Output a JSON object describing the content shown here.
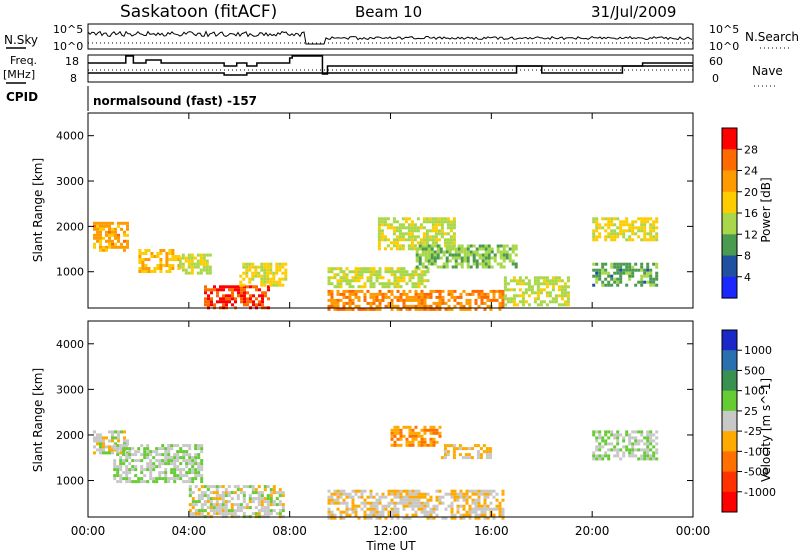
{
  "header": {
    "station": "Saskatoon (fitACF)",
    "beam": "Beam 10",
    "date": "31/Jul/2009"
  },
  "left_labels": {
    "nsky": "N.Sky",
    "freq_1": "Freq.",
    "freq_2": "[MHz]",
    "cpid": "CPID"
  },
  "right_labels": {
    "nsearch": "N.Search",
    "nave": "Nave"
  },
  "noise_panel": {
    "left_ticks": [
      "10^5",
      "10^0"
    ],
    "right_ticks": [
      "10^5",
      "10^0"
    ]
  },
  "freq_panel": {
    "left_ticks": [
      "18",
      "8"
    ],
    "right_ticks": [
      "60",
      "0"
    ]
  },
  "cpid_text": "normalsound (fast) -157",
  "x_axis": {
    "label": "Time UT",
    "ticks": [
      "00:00",
      "04:00",
      "08:00",
      "12:00",
      "16:00",
      "20:00",
      "00:00"
    ]
  },
  "power_panel": {
    "ylabel": "Slant Range [km]",
    "yticks": [
      "4000",
      "3000",
      "2000",
      "1000"
    ]
  },
  "velocity_panel": {
    "ylabel": "Slant Range [km]",
    "yticks": [
      "4000",
      "3000",
      "2000",
      "1000"
    ]
  },
  "power_colorbar": {
    "label": "Power [dB]",
    "ticks": [
      "28",
      "24",
      "20",
      "16",
      "12",
      "8",
      "4"
    ],
    "colors": [
      "#ff0000",
      "#ff6a00",
      "#ff9a00",
      "#ffcc00",
      "#a8d84a",
      "#4a9a50",
      "#2050a0",
      "#1a28ff"
    ]
  },
  "velocity_colorbar": {
    "label": "Velocity [m s^-1]",
    "ticks": [
      "1000",
      "500",
      "100",
      "25",
      "-25",
      "-100",
      "-500",
      "-1000"
    ],
    "colors": [
      "#1a28c8",
      "#2a70b0",
      "#3a9050",
      "#66cc33",
      "#c8c8c8",
      "#ffaa00",
      "#ff7000",
      "#ff3300",
      "#ff0000"
    ]
  },
  "chart_data": {
    "type": "heatmap",
    "x": [
      "00:00",
      "04:00",
      "08:00",
      "12:00",
      "16:00",
      "20:00",
      "00:00"
    ],
    "xlabel": "Time UT",
    "ylabel": "Slant Range [km]",
    "ylim": [
      200,
      4500
    ],
    "panels": [
      {
        "name": "Power [dB]",
        "colorbar_range": [
          0,
          30
        ],
        "blobs": [
          {
            "t": [
              0.2,
              1.6
            ],
            "r": [
              1500,
              2100
            ],
            "v": 20
          },
          {
            "t": [
              2.0,
              3.6
            ],
            "r": [
              1000,
              1500
            ],
            "v": 18
          },
          {
            "t": [
              3.6,
              4.8
            ],
            "r": [
              1000,
              1400
            ],
            "v": 14
          },
          {
            "t": [
              4.6,
              7.2
            ],
            "r": [
              200,
              700
            ],
            "v": 26
          },
          {
            "t": [
              6.0,
              7.8
            ],
            "r": [
              700,
              1200
            ],
            "v": 16
          },
          {
            "t": [
              9.5,
              16.5
            ],
            "r": [
              200,
              600
            ],
            "v": 22
          },
          {
            "t": [
              9.5,
              13.5
            ],
            "r": [
              700,
              1100
            ],
            "v": 14
          },
          {
            "t": [
              11.5,
              14.5
            ],
            "r": [
              1500,
              2200
            ],
            "v": 14
          },
          {
            "t": [
              13.0,
              17.0
            ],
            "r": [
              1100,
              1600
            ],
            "v": 12
          },
          {
            "t": [
              16.5,
              19.0
            ],
            "r": [
              300,
              900
            ],
            "v": 14
          },
          {
            "t": [
              20.0,
              22.5
            ],
            "r": [
              1700,
              2200
            ],
            "v": 16
          },
          {
            "t": [
              20.0,
              22.5
            ],
            "r": [
              700,
              1200
            ],
            "v": 10
          }
        ]
      },
      {
        "name": "Velocity [m s^-1]",
        "colorbar_range": [
          -1000,
          1000
        ],
        "blobs": [
          {
            "t": [
              0.2,
              1.6
            ],
            "r": [
              1600,
              2100
            ],
            "v": 0
          },
          {
            "t": [
              1.0,
              4.5
            ],
            "r": [
              1000,
              1800
            ],
            "v": 80
          },
          {
            "t": [
              4.0,
              7.8
            ],
            "r": [
              200,
              900
            ],
            "v": 0
          },
          {
            "t": [
              9.5,
              16.5
            ],
            "r": [
              200,
              800
            ],
            "v": -80
          },
          {
            "t": [
              12.0,
              14.0
            ],
            "r": [
              1800,
              2200
            ],
            "v": -300
          },
          {
            "t": [
              14.0,
              16.0
            ],
            "r": [
              1500,
              1800
            ],
            "v": -150
          },
          {
            "t": [
              20.0,
              22.5
            ],
            "r": [
              1500,
              2100
            ],
            "v": 80
          }
        ]
      }
    ],
    "gap": [
      8.1,
      9.3
    ]
  }
}
